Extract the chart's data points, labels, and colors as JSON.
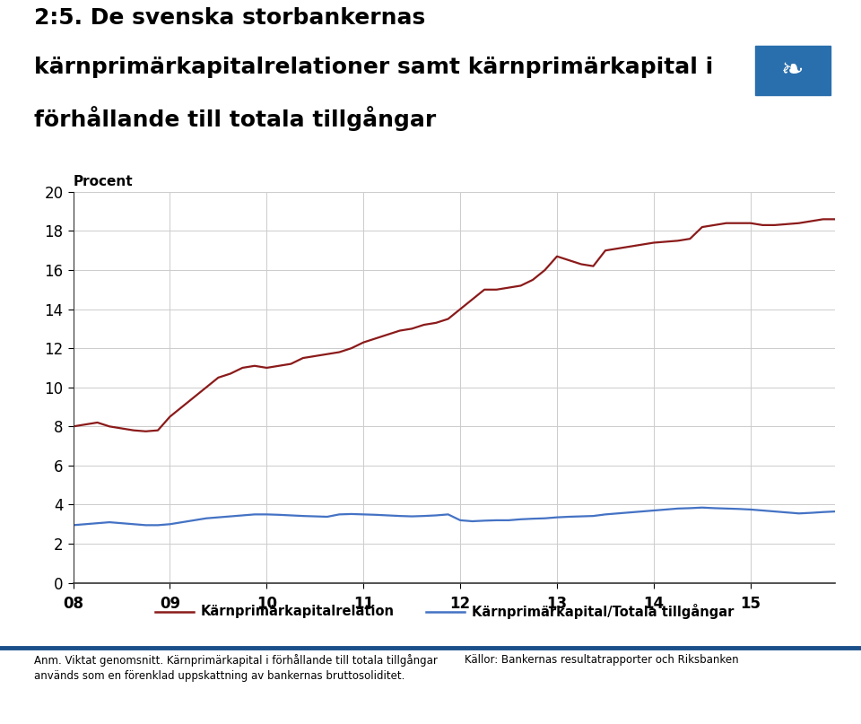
{
  "title_line1": "2:5. De svenska storbankernas",
  "title_line2": "kärnprimärkapitalrelationer samt kärnprimärkapital i",
  "title_line3": "förhållande till totala tillgångar",
  "ylabel_label": "Procent",
  "background_color": "#ffffff",
  "plot_bg_color": "#ffffff",
  "grid_color": "#cccccc",
  "logo_color": "#1a4f8a",
  "red_series_color": "#8b1a1a",
  "blue_series_color": "#4472c4",
  "red_series_label": "Kärnprimärkapitalrelation",
  "blue_series_label": "Kärnprimärkapital/Totala tillgångar",
  "footnote_left": "Anm. Viktat genomsnitt. Kärnprimärkapital i förhållande till totala tillgångar\nanvänds som en förenklad uppskattning av bankernas bruttosoliditet.",
  "source": "Källor: Bankernas resultatrapporter och Riksbanken",
  "ylim": [
    0,
    20
  ],
  "yticks": [
    0,
    2,
    4,
    6,
    8,
    10,
    12,
    14,
    16,
    18,
    20
  ],
  "xtick_labels": [
    "08",
    "09",
    "10",
    "11",
    "12",
    "13",
    "14",
    "15"
  ],
  "red_x": [
    0.0,
    0.25,
    0.5,
    0.75,
    1.0,
    1.25,
    1.5,
    1.75,
    2.0,
    2.25,
    2.5,
    2.75,
    3.0,
    3.25,
    3.5,
    3.75,
    4.0,
    4.25,
    4.5,
    4.75,
    5.0,
    5.25,
    5.5,
    5.75,
    6.0,
    6.25,
    6.5,
    6.75,
    7.0,
    7.25,
    7.5,
    7.75,
    8.0,
    8.25,
    8.5,
    8.75,
    9.0,
    9.25,
    9.5,
    9.75,
    10.0,
    10.25,
    10.5,
    10.75,
    11.0,
    11.25,
    11.5,
    11.75,
    12.0,
    12.25,
    12.5,
    12.75,
    13.0,
    13.25,
    13.5,
    13.75,
    14.0,
    14.25,
    14.5,
    14.75,
    15.0,
    15.25,
    15.5,
    15.75
  ],
  "red_y": [
    8.0,
    8.1,
    8.2,
    8.0,
    7.9,
    7.8,
    7.75,
    7.8,
    8.5,
    9.0,
    9.5,
    10.0,
    10.5,
    10.7,
    11.0,
    11.1,
    11.0,
    11.1,
    11.2,
    11.5,
    11.6,
    11.7,
    11.8,
    12.0,
    12.3,
    12.5,
    12.7,
    12.9,
    13.0,
    13.2,
    13.3,
    13.5,
    14.0,
    14.5,
    15.0,
    15.0,
    15.1,
    15.2,
    15.5,
    16.0,
    16.7,
    16.5,
    16.3,
    16.2,
    17.0,
    17.1,
    17.2,
    17.3,
    17.4,
    17.45,
    17.5,
    17.6,
    18.2,
    18.3,
    18.4,
    18.4,
    18.4,
    18.3,
    18.3,
    18.35,
    18.4,
    18.5,
    18.6,
    18.6
  ],
  "blue_x": [
    0.0,
    0.25,
    0.5,
    0.75,
    1.0,
    1.25,
    1.5,
    1.75,
    2.0,
    2.25,
    2.5,
    2.75,
    3.0,
    3.25,
    3.5,
    3.75,
    4.0,
    4.25,
    4.5,
    4.75,
    5.0,
    5.25,
    5.5,
    5.75,
    6.0,
    6.25,
    6.5,
    6.75,
    7.0,
    7.25,
    7.5,
    7.75,
    8.0,
    8.25,
    8.5,
    8.75,
    9.0,
    9.25,
    9.5,
    9.75,
    10.0,
    10.25,
    10.5,
    10.75,
    11.0,
    11.25,
    11.5,
    11.75,
    12.0,
    12.25,
    12.5,
    12.75,
    13.0,
    13.25,
    13.5,
    13.75,
    14.0,
    14.25,
    14.5,
    14.75,
    15.0,
    15.25,
    15.5,
    15.75
  ],
  "blue_y": [
    2.95,
    3.0,
    3.05,
    3.1,
    3.05,
    3.0,
    2.95,
    2.95,
    3.0,
    3.1,
    3.2,
    3.3,
    3.35,
    3.4,
    3.45,
    3.5,
    3.5,
    3.48,
    3.45,
    3.42,
    3.4,
    3.38,
    3.5,
    3.52,
    3.5,
    3.48,
    3.45,
    3.42,
    3.4,
    3.42,
    3.45,
    3.5,
    3.2,
    3.15,
    3.18,
    3.2,
    3.2,
    3.25,
    3.28,
    3.3,
    3.35,
    3.38,
    3.4,
    3.42,
    3.5,
    3.55,
    3.6,
    3.65,
    3.7,
    3.75,
    3.8,
    3.82,
    3.85,
    3.82,
    3.8,
    3.78,
    3.75,
    3.7,
    3.65,
    3.6,
    3.55,
    3.58,
    3.62,
    3.65
  ],
  "xmin": 0.0,
  "xmax": 15.75,
  "sep_line_color": "#1a4f8a",
  "title_fontsize": 18,
  "tick_fontsize": 12,
  "legend_fontsize": 10.5
}
